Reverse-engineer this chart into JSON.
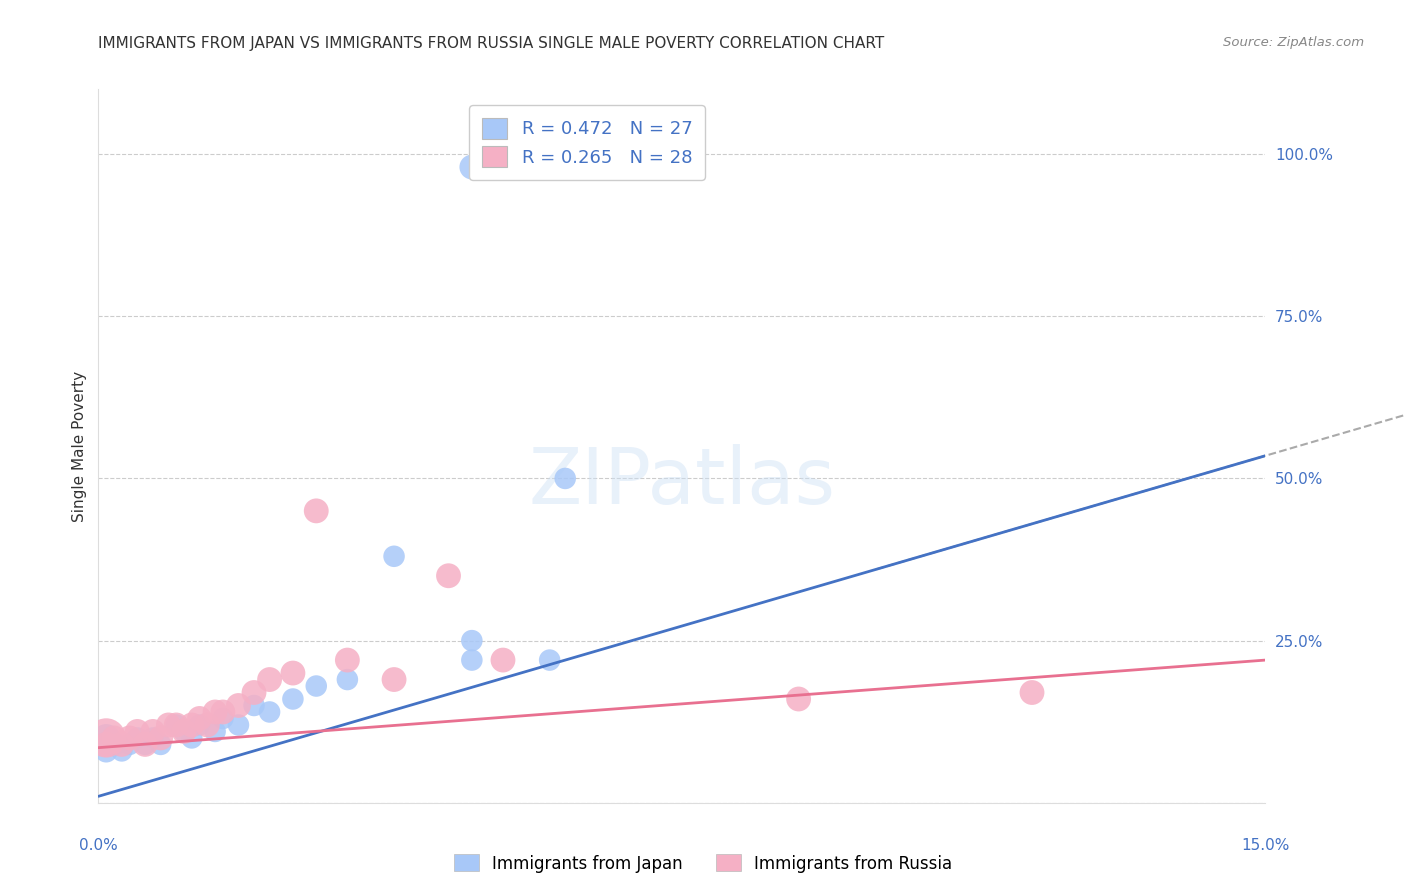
{
  "title": "IMMIGRANTS FROM JAPAN VS IMMIGRANTS FROM RUSSIA SINGLE MALE POVERTY CORRELATION CHART",
  "source": "Source: ZipAtlas.com",
  "ylabel": "Single Male Poverty",
  "ytick_values": [
    0.0,
    0.25,
    0.5,
    0.75,
    1.0
  ],
  "ytick_labels": [
    "",
    "25.0%",
    "50.0%",
    "75.0%",
    "100.0%"
  ],
  "xlim": [
    0.0,
    0.15
  ],
  "ylim": [
    0.0,
    1.1
  ],
  "plot_ylim": [
    0.0,
    1.1
  ],
  "watermark": "ZIPatlas",
  "japan_color": "#a8c8f8",
  "russia_color": "#f5b0c5",
  "japan_line_color": "#4472c4",
  "russia_line_color": "#e87090",
  "japan_line_slope": 3.5,
  "japan_line_intercept": 0.01,
  "russia_line_slope": 0.9,
  "russia_line_intercept": 0.085,
  "japan_dashed_slope": 3.5,
  "japan_dashed_intercept": 0.01,
  "japan_scatter_x": [
    0.001,
    0.001,
    0.002,
    0.003,
    0.004,
    0.005,
    0.006,
    0.007,
    0.008,
    0.01,
    0.011,
    0.012,
    0.013,
    0.015,
    0.016,
    0.018,
    0.02,
    0.022,
    0.025,
    0.028,
    0.032,
    0.038,
    0.048,
    0.048,
    0.058,
    0.06,
    0.048
  ],
  "japan_scatter_y": [
    0.1,
    0.08,
    0.09,
    0.08,
    0.09,
    0.1,
    0.09,
    0.1,
    0.09,
    0.12,
    0.11,
    0.1,
    0.12,
    0.11,
    0.13,
    0.12,
    0.15,
    0.14,
    0.16,
    0.18,
    0.19,
    0.38,
    0.22,
    0.25,
    0.22,
    0.5,
    0.98
  ],
  "japan_scatter_s": [
    100,
    70,
    70,
    60,
    60,
    60,
    60,
    60,
    60,
    60,
    60,
    60,
    60,
    60,
    60,
    60,
    60,
    60,
    60,
    60,
    60,
    60,
    60,
    60,
    60,
    60,
    80
  ],
  "russia_scatter_x": [
    0.001,
    0.001,
    0.002,
    0.003,
    0.004,
    0.005,
    0.006,
    0.007,
    0.008,
    0.009,
    0.01,
    0.011,
    0.012,
    0.013,
    0.014,
    0.015,
    0.016,
    0.018,
    0.02,
    0.022,
    0.025,
    0.028,
    0.032,
    0.038,
    0.045,
    0.052,
    0.09,
    0.12
  ],
  "russia_scatter_y": [
    0.1,
    0.09,
    0.1,
    0.09,
    0.1,
    0.11,
    0.09,
    0.11,
    0.1,
    0.12,
    0.12,
    0.11,
    0.12,
    0.13,
    0.12,
    0.14,
    0.14,
    0.15,
    0.17,
    0.19,
    0.2,
    0.45,
    0.22,
    0.19,
    0.35,
    0.22,
    0.16,
    0.17
  ],
  "russia_scatter_s": [
    200,
    80,
    80,
    80,
    80,
    80,
    80,
    80,
    80,
    80,
    80,
    80,
    80,
    80,
    80,
    80,
    80,
    80,
    80,
    80,
    80,
    80,
    80,
    80,
    80,
    80,
    80,
    80
  ],
  "legend_r_japan": "R = 0.472",
  "legend_n_japan": "N = 27",
  "legend_r_russia": "R = 0.265",
  "legend_n_russia": "N = 28"
}
